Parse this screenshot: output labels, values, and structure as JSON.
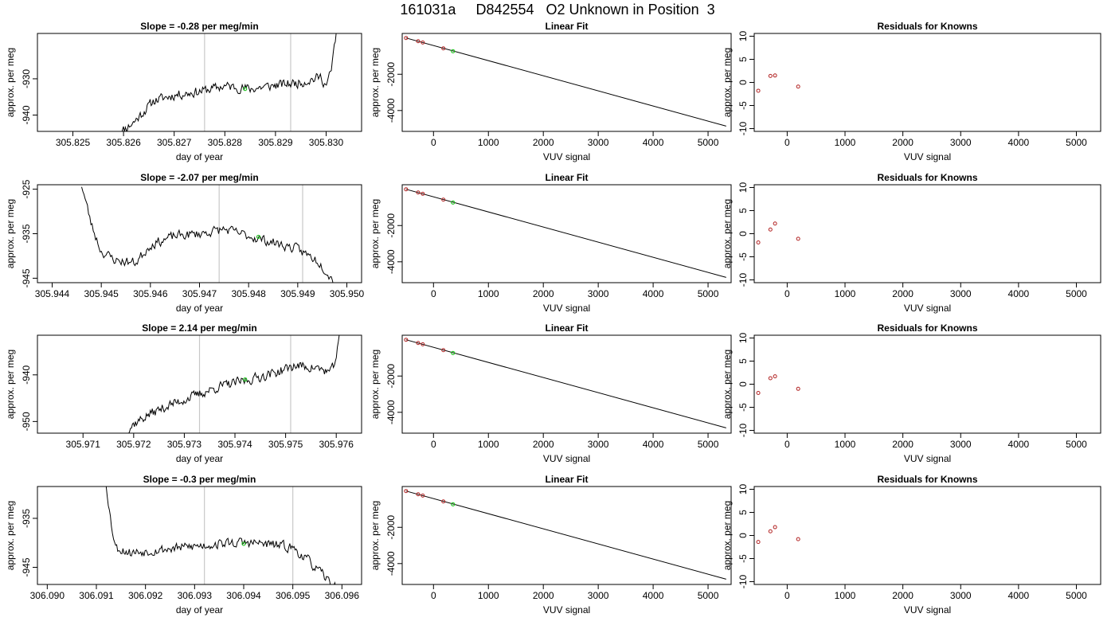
{
  "page": {
    "title": "161031a     D842554   O2 Unknown in Position  3"
  },
  "chart_data": [
    {
      "type": "line",
      "panel": "timeseries",
      "row": 0,
      "title": "Slope =  -0.28  per meg/min",
      "xlabel": "day of year",
      "ylabel": "approx. per meg",
      "xlim": [
        305.8243,
        305.8307
      ],
      "ylim": [
        -944.5,
        -917.5
      ],
      "xticks": [
        "305.825",
        "305.826",
        "305.827",
        "305.828",
        "305.829",
        "305.830"
      ],
      "yticks": [
        "-930",
        "-940"
      ],
      "vlines": [
        305.8276,
        305.8293
      ],
      "start": 305.8259,
      "end": 305.8302,
      "seed": 11,
      "trend": [
        [
          305.8259,
          -945.0
        ],
        [
          305.8262,
          -942.0
        ],
        [
          305.8264,
          -939.0
        ],
        [
          305.8266,
          -936.0
        ],
        [
          305.827,
          -934.5
        ],
        [
          305.8275,
          -933.5
        ],
        [
          305.828,
          -932.0
        ],
        [
          305.8285,
          -932.8
        ],
        [
          305.829,
          -931.8
        ],
        [
          305.8295,
          -931.0
        ],
        [
          305.8299,
          -929.5
        ],
        [
          305.83,
          -932.0
        ],
        [
          305.8301,
          -928.0
        ],
        [
          305.8302,
          -917.0
        ]
      ],
      "marker": [
        305.8284,
        -932.8
      ]
    },
    {
      "type": "scatter",
      "panel": "fit",
      "row": 0,
      "title": "Linear Fit",
      "xlabel": "VUV signal",
      "ylabel": "approx. per meg",
      "xlim": [
        -570,
        5420
      ],
      "ylim": [
        -5150,
        250
      ],
      "xticks": [
        "0",
        "1000",
        "2000",
        "3000",
        "4000",
        "5000"
      ],
      "yticks": [
        "-2000",
        "-4000"
      ],
      "fit_line": [
        [
          -500,
          0
        ],
        [
          5330,
          -4860
        ]
      ],
      "knowns": [
        [
          -500,
          0
        ],
        [
          -280,
          -180
        ],
        [
          -195,
          -250
        ],
        [
          180,
          -575
        ]
      ],
      "unknown": [
        [
          355,
          -730
        ]
      ]
    },
    {
      "type": "scatter",
      "panel": "residuals",
      "row": 0,
      "title": "Residuals for Knowns",
      "xlabel": "VUV signal",
      "ylabel": "approx. per meg",
      "xlim": [
        -570,
        5420
      ],
      "ylim": [
        -10.6,
        10.6
      ],
      "xticks": [
        "0",
        "1000",
        "2000",
        "3000",
        "4000",
        "5000"
      ],
      "yticks": [
        "10",
        "5",
        "0",
        "-5",
        "-10"
      ],
      "points": [
        [
          -500,
          -1.8
        ],
        [
          -290,
          1.4
        ],
        [
          -210,
          1.5
        ],
        [
          190,
          -0.9
        ]
      ]
    },
    {
      "type": "line",
      "panel": "timeseries",
      "row": 1,
      "title": "Slope =  -2.07  per meg/min",
      "xlabel": "day of year",
      "ylabel": "approx. per meg",
      "xlim": [
        305.9437,
        305.9503
      ],
      "ylim": [
        -946.0,
        -924.0
      ],
      "xticks": [
        "305.944",
        "305.945",
        "305.946",
        "305.947",
        "305.948",
        "305.949",
        "305.950"
      ],
      "yticks": [
        "-925",
        "-935",
        "-945"
      ],
      "vlines": [
        305.9474,
        305.9491
      ],
      "start": 305.9446,
      "end": 305.9498,
      "seed": 23,
      "trend": [
        [
          305.9446,
          -924.0
        ],
        [
          305.9448,
          -933.0
        ],
        [
          305.945,
          -939.0
        ],
        [
          305.9453,
          -941.0
        ],
        [
          305.9457,
          -941.5
        ],
        [
          305.946,
          -937.5
        ],
        [
          305.9465,
          -935.5
        ],
        [
          305.947,
          -935.0
        ],
        [
          305.9475,
          -934.0
        ],
        [
          305.948,
          -935.5
        ],
        [
          305.9485,
          -937.0
        ],
        [
          305.949,
          -938.5
        ],
        [
          305.9494,
          -941.0
        ],
        [
          305.9496,
          -943.5
        ],
        [
          305.9498,
          -947.0
        ]
      ],
      "marker": [
        305.9482,
        -935.7
      ]
    },
    {
      "type": "scatter",
      "panel": "fit",
      "row": 1,
      "title": "Linear Fit",
      "xlabel": "VUV signal",
      "ylabel": "approx. per meg",
      "xlim": [
        -570,
        5420
      ],
      "ylim": [
        -5150,
        250
      ],
      "xticks": [
        "0",
        "1000",
        "2000",
        "3000",
        "4000",
        "5000"
      ],
      "yticks": [
        "-2000",
        "-4000"
      ],
      "fit_line": [
        [
          -500,
          0
        ],
        [
          5330,
          -4860
        ]
      ],
      "knowns": [
        [
          -500,
          0
        ],
        [
          -280,
          -180
        ],
        [
          -195,
          -250
        ],
        [
          180,
          -575
        ]
      ],
      "unknown": [
        [
          355,
          -730
        ]
      ]
    },
    {
      "type": "scatter",
      "panel": "residuals",
      "row": 1,
      "title": "Residuals for Knowns",
      "xlabel": "VUV signal",
      "ylabel": "approx. per meg",
      "xlim": [
        -570,
        5420
      ],
      "ylim": [
        -10.6,
        10.6
      ],
      "xticks": [
        "0",
        "1000",
        "2000",
        "3000",
        "4000",
        "5000"
      ],
      "yticks": [
        "10",
        "5",
        "0",
        "-5",
        "-10"
      ],
      "points": [
        [
          -500,
          -1.9
        ],
        [
          -290,
          0.9
        ],
        [
          -210,
          2.2
        ],
        [
          190,
          -1.1
        ]
      ]
    },
    {
      "type": "line",
      "panel": "timeseries",
      "row": 2,
      "title": "Slope =  2.14  per meg/min",
      "xlabel": "day of year",
      "ylabel": "approx. per meg",
      "xlim": [
        305.9701,
        305.9765
      ],
      "ylim": [
        -952.5,
        -931.5
      ],
      "xticks": [
        "305.971",
        "305.972",
        "305.973",
        "305.974",
        "305.975",
        "305.976"
      ],
      "yticks": [
        "-940",
        "-950"
      ],
      "vlines": [
        305.9733,
        305.9751
      ],
      "start": 305.9718,
      "end": 305.9761,
      "seed": 37,
      "trend": [
        [
          305.9718,
          -953.0
        ],
        [
          305.972,
          -950.5
        ],
        [
          305.9723,
          -948.5
        ],
        [
          305.9727,
          -946.5
        ],
        [
          305.9732,
          -944.5
        ],
        [
          305.9737,
          -942.5
        ],
        [
          305.9743,
          -941.0
        ],
        [
          305.9748,
          -939.5
        ],
        [
          305.9752,
          -938.0
        ],
        [
          305.9756,
          -938.5
        ],
        [
          305.9759,
          -939.5
        ],
        [
          305.976,
          -936.0
        ],
        [
          305.9761,
          -930.0
        ]
      ],
      "marker": [
        305.9742,
        -941.0
      ]
    },
    {
      "type": "scatter",
      "panel": "fit",
      "row": 2,
      "title": "Linear Fit",
      "xlabel": "VUV signal",
      "ylabel": "approx. per meg",
      "xlim": [
        -570,
        5420
      ],
      "ylim": [
        -5150,
        250
      ],
      "xticks": [
        "0",
        "1000",
        "2000",
        "3000",
        "4000",
        "5000"
      ],
      "yticks": [
        "-2000",
        "-4000"
      ],
      "fit_line": [
        [
          -500,
          0
        ],
        [
          5330,
          -4860
        ]
      ],
      "knowns": [
        [
          -500,
          0
        ],
        [
          -280,
          -180
        ],
        [
          -195,
          -250
        ],
        [
          180,
          -575
        ]
      ],
      "unknown": [
        [
          355,
          -730
        ]
      ]
    },
    {
      "type": "scatter",
      "panel": "residuals",
      "row": 2,
      "title": "Residuals for Knowns",
      "xlabel": "VUV signal",
      "ylabel": "approx. per meg",
      "xlim": [
        -570,
        5420
      ],
      "ylim": [
        -10.6,
        10.6
      ],
      "xticks": [
        "0",
        "1000",
        "2000",
        "3000",
        "4000",
        "5000"
      ],
      "yticks": [
        "10",
        "5",
        "0",
        "-5",
        "-10"
      ],
      "points": [
        [
          -500,
          -1.9
        ],
        [
          -290,
          1.3
        ],
        [
          -210,
          1.7
        ],
        [
          190,
          -1.0
        ]
      ]
    },
    {
      "type": "line",
      "panel": "timeseries",
      "row": 3,
      "title": "Slope =  -0.3  per meg/min",
      "xlabel": "day of year",
      "ylabel": "approx. per meg",
      "xlim": [
        306.0898,
        306.0964
      ],
      "ylim": [
        -948.5,
        -928.5
      ],
      "xticks": [
        "306.090",
        "306.091",
        "306.092",
        "306.093",
        "306.094",
        "306.095",
        "306.096"
      ],
      "yticks": [
        "-935",
        "-945"
      ],
      "vlines": [
        306.0932,
        306.095
      ],
      "start": 306.0912,
      "end": 306.0959,
      "seed": 53,
      "trend": [
        [
          306.0912,
          -928.0
        ],
        [
          306.0913,
          -936.0
        ],
        [
          306.0914,
          -941.0
        ],
        [
          306.0917,
          -942.0
        ],
        [
          306.0922,
          -941.5
        ],
        [
          306.0927,
          -941.0
        ],
        [
          306.0932,
          -940.5
        ],
        [
          306.0937,
          -940.0
        ],
        [
          306.0942,
          -940.0
        ],
        [
          306.0947,
          -940.5
        ],
        [
          306.095,
          -941.0
        ],
        [
          306.0953,
          -943.5
        ],
        [
          306.0956,
          -946.5
        ],
        [
          306.0958,
          -948.5
        ],
        [
          306.0959,
          -949.5
        ]
      ],
      "marker": [
        306.094,
        -940.2
      ]
    },
    {
      "type": "scatter",
      "panel": "fit",
      "row": 3,
      "title": "Linear Fit",
      "xlabel": "VUV signal",
      "ylabel": "approx. per meg",
      "xlim": [
        -570,
        5420
      ],
      "ylim": [
        -5150,
        250
      ],
      "xticks": [
        "0",
        "1000",
        "2000",
        "3000",
        "4000",
        "5000"
      ],
      "yticks": [
        "-2000",
        "-4000"
      ],
      "fit_line": [
        [
          -500,
          0
        ],
        [
          5330,
          -4860
        ]
      ],
      "knowns": [
        [
          -500,
          0
        ],
        [
          -280,
          -180
        ],
        [
          -195,
          -250
        ],
        [
          180,
          -575
        ]
      ],
      "unknown": [
        [
          355,
          -730
        ]
      ]
    },
    {
      "type": "scatter",
      "panel": "residuals",
      "row": 3,
      "title": "Residuals for Knowns",
      "xlabel": "VUV signal",
      "ylabel": "approx. per meg",
      "xlim": [
        -570,
        5420
      ],
      "ylim": [
        -10.6,
        10.6
      ],
      "xticks": [
        "0",
        "1000",
        "2000",
        "3000",
        "4000",
        "5000"
      ],
      "yticks": [
        "10",
        "5",
        "0",
        "-5",
        "-10"
      ],
      "points": [
        [
          -500,
          -1.4
        ],
        [
          -290,
          0.9
        ],
        [
          -210,
          1.8
        ],
        [
          190,
          -0.8
        ]
      ]
    }
  ],
  "colors": {
    "axis": "#000000",
    "line": "#000000",
    "vline": "#c8c8c8",
    "known_point": "#b22222",
    "unknown_point": "#22c422"
  }
}
